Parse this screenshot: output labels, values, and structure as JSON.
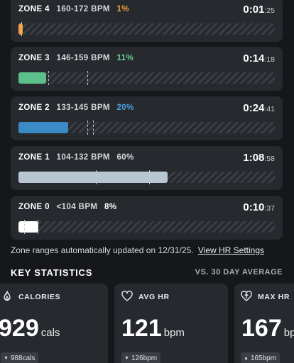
{
  "zones": [
    {
      "name": "ZONE 4",
      "range": "160-172 BPM",
      "percent": "1%",
      "percent_value": 1,
      "time_main": "0:01",
      "time_secs": ":25",
      "color": "#f5a03a",
      "pct_color": "#f5a03a"
    },
    {
      "name": "ZONE 3",
      "range": "146-159 BPM",
      "percent": "11%",
      "percent_value": 11,
      "time_main": "0:14",
      "time_secs": ":18",
      "color": "#5cbf8a",
      "pct_color": "#6ed09a"
    },
    {
      "name": "ZONE 2",
      "range": "133-145 BPM",
      "percent": "20%",
      "percent_value": 20,
      "time_main": "0:24",
      "time_secs": ":41",
      "color": "#3a8ac6",
      "pct_color": "#4da3e0"
    },
    {
      "name": "ZONE 1",
      "range": "104-132 BPM",
      "percent": "60%",
      "percent_value": 60,
      "time_main": "1:08",
      "time_secs": ":58",
      "color": "#b7c6d1",
      "pct_color": "#d6d8db"
    },
    {
      "name": "ZONE 0",
      "range": "<104 BPM",
      "percent": "8%",
      "percent_value": 8,
      "time_main": "0:10",
      "time_secs": ":37",
      "color": "#ffffff",
      "pct_color": "#ffffff"
    }
  ],
  "zone_note": {
    "text": "Zone ranges automatically updated on 12/31/25.",
    "link": "View HR Settings"
  },
  "key_statistics": {
    "title": "KEY STATISTICS",
    "comparison": "VS. 30 DAY AVERAGE",
    "cards": [
      {
        "label": "CALORIES",
        "icon": "flame-icon",
        "value": "929",
        "unit": "cals",
        "avg": "988cals",
        "trend": "down"
      },
      {
        "label": "AVG HR",
        "icon": "heart-icon",
        "value": "121",
        "unit": "bpm",
        "avg": "126bpm",
        "trend": "down"
      },
      {
        "label": "MAX HR",
        "icon": "heart-up-icon",
        "value": "167",
        "unit": "bpm",
        "avg": "165bpm",
        "trend": "up"
      }
    ]
  }
}
